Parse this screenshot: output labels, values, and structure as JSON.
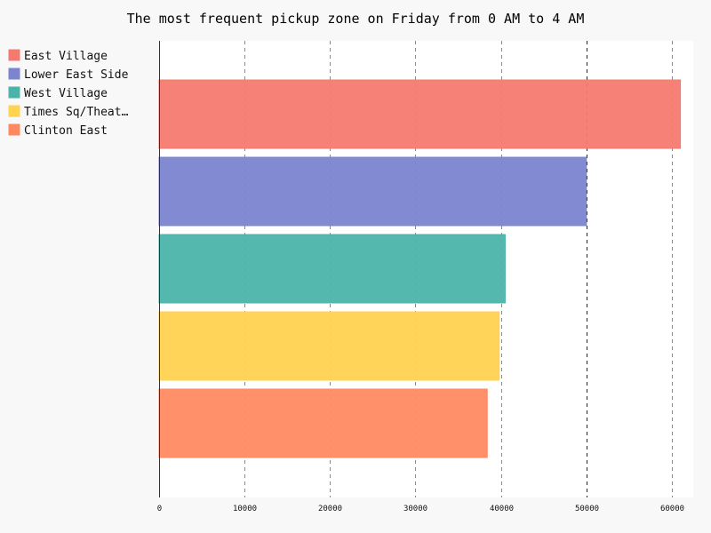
{
  "chart_data": {
    "type": "bar",
    "orientation": "horizontal",
    "title": "The most frequent pickup zone on Friday from 0 AM to 4 AM",
    "xlabel": "",
    "ylabel": "",
    "xlim": [
      0,
      62500
    ],
    "x_ticks": [
      "0",
      "10000",
      "20000",
      "30000",
      "40000",
      "50000",
      "60000"
    ],
    "grid": "vertical-dashed",
    "legend_position": "top-left",
    "series": [
      {
        "name": "East Village",
        "value": 61000,
        "color": "#f47a70"
      },
      {
        "name": "Lower East Side",
        "value": 50000,
        "color": "#7b85cf"
      },
      {
        "name": "West Village",
        "value": 40500,
        "color": "#4bb4aa"
      },
      {
        "name": "Times Sq/Theat…",
        "value": 39800,
        "color": "#ffd24f"
      },
      {
        "name": "Clinton East",
        "value": 38400,
        "color": "#ff8a62"
      }
    ]
  }
}
